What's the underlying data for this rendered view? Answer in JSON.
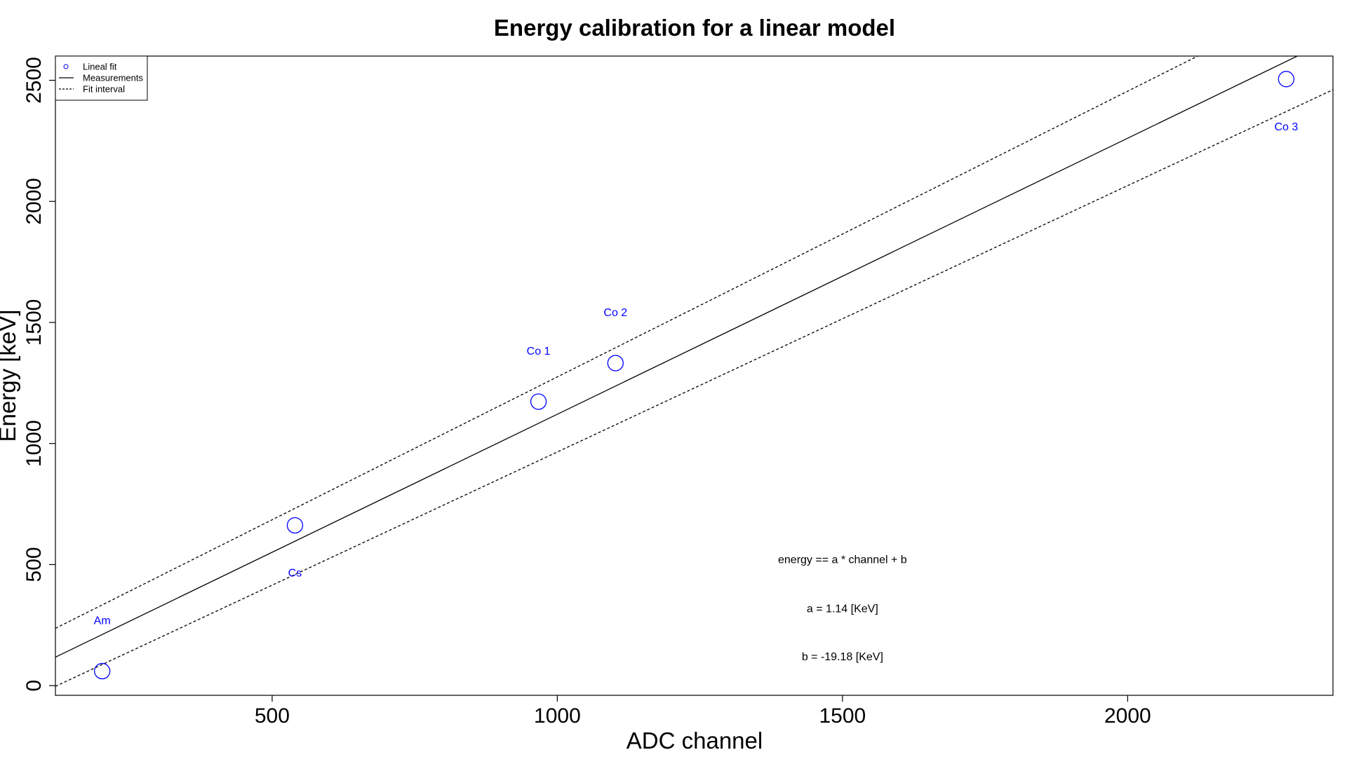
{
  "chart_data": {
    "type": "scatter",
    "title": "Energy calibration for a linear model",
    "xlabel": "ADC channel",
    "ylabel": "Energy [keV]",
    "xlim": [
      120,
      2360
    ],
    "ylim": [
      -40,
      2600
    ],
    "xticks": [
      500,
      1000,
      1500,
      2000
    ],
    "yticks": [
      0,
      500,
      1000,
      1500,
      2000,
      2500
    ],
    "points": [
      {
        "label": "Am",
        "x": 202,
        "y": 60
      },
      {
        "label": "Cs",
        "x": 540,
        "y": 662
      },
      {
        "label": "Co 1",
        "x": 967,
        "y": 1173
      },
      {
        "label": "Co 2",
        "x": 1102,
        "y": 1332
      },
      {
        "label": "Co 3",
        "x": 2278,
        "y": 2505
      }
    ],
    "label_offsets": {
      "Am": "above",
      "Cs": "below",
      "Co 1": "above",
      "Co 2": "above",
      "Co 3": "below"
    },
    "fit": {
      "a": 1.14,
      "b": -19.18
    },
    "fit_interval": {
      "upper": {
        "a": 1.18,
        "b": 95
      },
      "lower": {
        "a": 1.1,
        "b": -135
      }
    },
    "legend": {
      "position": "top-left",
      "entries": [
        {
          "label": "Lineal fit",
          "style": "point"
        },
        {
          "label": "Measurements",
          "style": "solid"
        },
        {
          "label": "Fit interval",
          "style": "dashed"
        }
      ]
    },
    "annotations": [
      {
        "text": "energy == a * channel + b",
        "x": 1500,
        "y": 505
      },
      {
        "text": "a =  1.14 [KeV]",
        "x": 1500,
        "y": 303
      },
      {
        "text": "b =  -19.18 [KeV]",
        "x": 1500,
        "y": 105
      }
    ],
    "colors": {
      "points": "#0000ff",
      "lines": "#000000"
    }
  }
}
